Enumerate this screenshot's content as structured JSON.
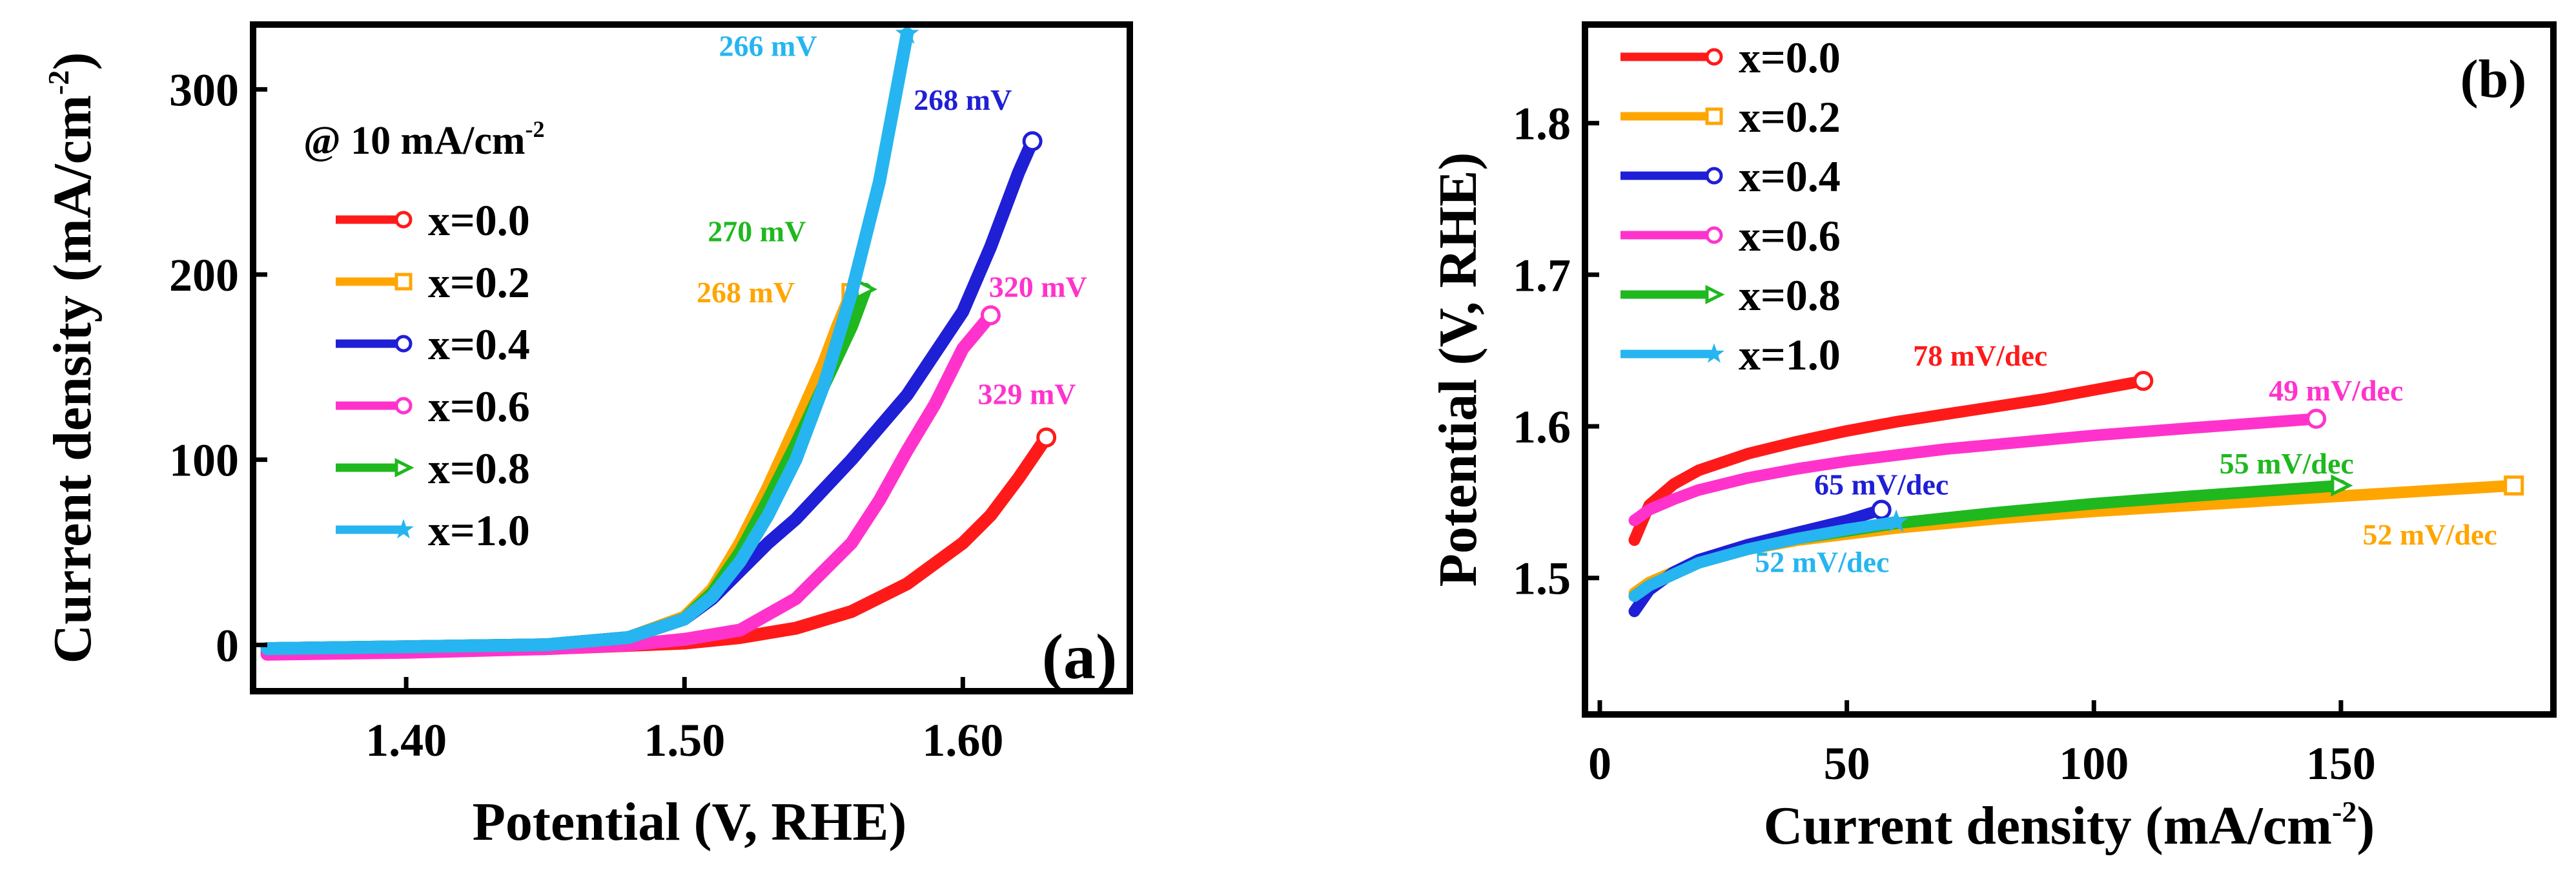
{
  "chart_data": [
    {
      "panel": "(a)",
      "type": "line",
      "title": "",
      "xlabel": "Potential (V, RHE)",
      "ylabel": "Current density (mA/cm",
      "ylabel_sup": "-2",
      "ylabel_close": ")",
      "xlim": [
        1.345,
        1.66
      ],
      "ylim": [
        -25,
        335
      ],
      "xticks": [
        1.4,
        1.5,
        1.6
      ],
      "xtick_labels": [
        "1.40",
        "1.50",
        "1.60"
      ],
      "yticks": [
        0,
        100,
        200,
        300
      ],
      "ytick_labels": [
        "0",
        "100",
        "200",
        "300"
      ],
      "legend_title": "@ 10 mA/cm",
      "legend_title_sup": "-2",
      "legend_position": "upper-left",
      "series": [
        {
          "name": "x=0.0",
          "color": "#ff1a1a",
          "marker": "circle",
          "x": [
            1.35,
            1.4,
            1.45,
            1.5,
            1.52,
            1.54,
            1.56,
            1.58,
            1.6,
            1.61,
            1.62,
            1.63
          ],
          "y": [
            -4,
            -3,
            -2,
            1,
            4,
            9,
            18,
            33,
            55,
            70,
            90,
            112
          ]
        },
        {
          "name": "x=0.2",
          "color": "#ffa500",
          "marker": "square",
          "x": [
            1.35,
            1.4,
            1.45,
            1.48,
            1.5,
            1.51,
            1.52,
            1.53,
            1.54,
            1.55,
            1.555,
            1.56
          ],
          "y": [
            -2,
            -1,
            0,
            4,
            15,
            30,
            55,
            85,
            118,
            152,
            172,
            190
          ]
        },
        {
          "name": "x=0.4",
          "color": "#1f1fd6",
          "marker": "circle",
          "x": [
            1.35,
            1.4,
            1.45,
            1.48,
            1.5,
            1.51,
            1.52,
            1.53,
            1.54,
            1.56,
            1.58,
            1.6,
            1.61,
            1.62,
            1.625
          ],
          "y": [
            -2,
            -1,
            0,
            4,
            14,
            25,
            40,
            55,
            68,
            100,
            135,
            180,
            215,
            255,
            272
          ]
        },
        {
          "name": "x=0.6",
          "color": "#ff33cc",
          "marker": "circle",
          "x": [
            1.35,
            1.4,
            1.45,
            1.48,
            1.5,
            1.52,
            1.54,
            1.56,
            1.57,
            1.58,
            1.59,
            1.6,
            1.61
          ],
          "y": [
            -5,
            -4,
            -2,
            0,
            3,
            8,
            25,
            55,
            78,
            105,
            130,
            160,
            178
          ]
        },
        {
          "name": "x=0.8",
          "color": "#1fb81f",
          "marker": "triangle",
          "x": [
            1.35,
            1.4,
            1.45,
            1.48,
            1.5,
            1.51,
            1.52,
            1.53,
            1.54,
            1.55,
            1.56,
            1.565
          ],
          "y": [
            -2,
            -1,
            0,
            4,
            14,
            28,
            50,
            78,
            108,
            140,
            172,
            192
          ]
        },
        {
          "name": "x=1.0",
          "color": "#26b5f0",
          "marker": "star",
          "x": [
            1.35,
            1.4,
            1.45,
            1.48,
            1.5,
            1.51,
            1.52,
            1.53,
            1.54,
            1.55,
            1.56,
            1.57,
            1.575,
            1.58
          ],
          "y": [
            -2,
            -1,
            0,
            4,
            14,
            26,
            45,
            70,
            100,
            140,
            190,
            250,
            290,
            330
          ]
        }
      ],
      "annotations": [
        {
          "text": "266 mV",
          "color": "#26b5f0",
          "x": 1.53,
          "y": 318
        },
        {
          "text": "268 mV",
          "color": "#1f1fd6",
          "x": 1.6,
          "y": 289
        },
        {
          "text": "270 mV",
          "color": "#1fb81f",
          "x": 1.526,
          "y": 218
        },
        {
          "text": "268 mV",
          "color": "#ffa500",
          "x": 1.522,
          "y": 185
        },
        {
          "text": "320 mV",
          "color": "#ff33cc",
          "x": 1.627,
          "y": 188
        },
        {
          "text": "329 mV",
          "color": "#ff33cc",
          "x": 1.623,
          "y": 130
        }
      ]
    },
    {
      "panel": "(b)",
      "type": "line",
      "title": "",
      "xlabel": "Current density (mA/cm",
      "xlabel_sup": "-2",
      "xlabel_close": ")",
      "ylabel": "Potential (V, RHE)",
      "xlim": [
        -3,
        193
      ],
      "ylim": [
        1.41,
        1.865
      ],
      "xticks": [
        0,
        50,
        100,
        150
      ],
      "xtick_labels": [
        "0",
        "50",
        "100",
        "150"
      ],
      "yticks": [
        1.5,
        1.6,
        1.7,
        1.8
      ],
      "ytick_labels": [
        "1.5",
        "1.6",
        "1.7",
        "1.8"
      ],
      "legend_position": "upper-left",
      "series": [
        {
          "name": "x=0.0",
          "color": "#ff1a1a",
          "marker": "circle",
          "tafel": "78 mV/dec",
          "x": [
            7,
            10,
            15,
            20,
            30,
            40,
            50,
            60,
            70,
            80,
            90,
            100,
            110
          ],
          "y": [
            1.525,
            1.548,
            1.562,
            1.571,
            1.582,
            1.59,
            1.597,
            1.603,
            1.608,
            1.613,
            1.618,
            1.624,
            1.63
          ]
        },
        {
          "name": "x=0.2",
          "color": "#ffa500",
          "marker": "square",
          "tafel": "52 mV/dec",
          "x": [
            7,
            10,
            20,
            30,
            40,
            60,
            80,
            100,
            120,
            140,
            160,
            185
          ],
          "y": [
            1.49,
            1.497,
            1.511,
            1.519,
            1.525,
            1.533,
            1.539,
            1.544,
            1.548,
            1.552,
            1.556,
            1.561
          ]
        },
        {
          "name": "x=0.4",
          "color": "#1f1fd6",
          "marker": "circle",
          "tafel": "65 mV/dec",
          "x": [
            7,
            10,
            15,
            20,
            30,
            40,
            50,
            57
          ],
          "y": [
            1.478,
            1.492,
            1.504,
            1.512,
            1.522,
            1.53,
            1.538,
            1.545
          ]
        },
        {
          "name": "x=0.6",
          "color": "#ff33cc",
          "marker": "circle",
          "tafel": "49 mV/dec",
          "x": [
            7,
            10,
            15,
            20,
            30,
            40,
            50,
            60,
            70,
            80,
            100,
            120,
            145
          ],
          "y": [
            1.538,
            1.545,
            1.552,
            1.558,
            1.566,
            1.572,
            1.577,
            1.581,
            1.585,
            1.588,
            1.594,
            1.599,
            1.605
          ]
        },
        {
          "name": "x=0.8",
          "color": "#1fb81f",
          "marker": "triangle",
          "tafel": "55 mV/dec",
          "x": [
            7,
            10,
            20,
            30,
            40,
            60,
            80,
            100,
            120,
            150
          ],
          "y": [
            1.488,
            1.495,
            1.51,
            1.519,
            1.526,
            1.536,
            1.543,
            1.549,
            1.554,
            1.561
          ]
        },
        {
          "name": "x=1.0",
          "color": "#26b5f0",
          "marker": "star",
          "tafel": "52 mV/dec",
          "x": [
            7,
            10,
            20,
            30,
            40,
            50,
            60
          ],
          "y": [
            1.488,
            1.495,
            1.51,
            1.519,
            1.526,
            1.532,
            1.537
          ]
        }
      ],
      "annotations": [
        {
          "text": "78 mV/dec",
          "color": "#ff1a1a",
          "x": 77,
          "y": 1.64
        },
        {
          "text": "49 mV/dec",
          "color": "#ff33cc",
          "x": 149,
          "y": 1.617
        },
        {
          "text": "65 mV/dec",
          "color": "#1f1fd6",
          "x": 57,
          "y": 1.555
        },
        {
          "text": "55 mV/dec",
          "color": "#1fb81f",
          "x": 139,
          "y": 1.569
        },
        {
          "text": "52 mV/dec",
          "color": "#ffa500",
          "x": 168,
          "y": 1.522
        },
        {
          "text": "52 mV/dec",
          "color": "#26b5f0",
          "x": 45,
          "y": 1.504
        }
      ]
    }
  ]
}
